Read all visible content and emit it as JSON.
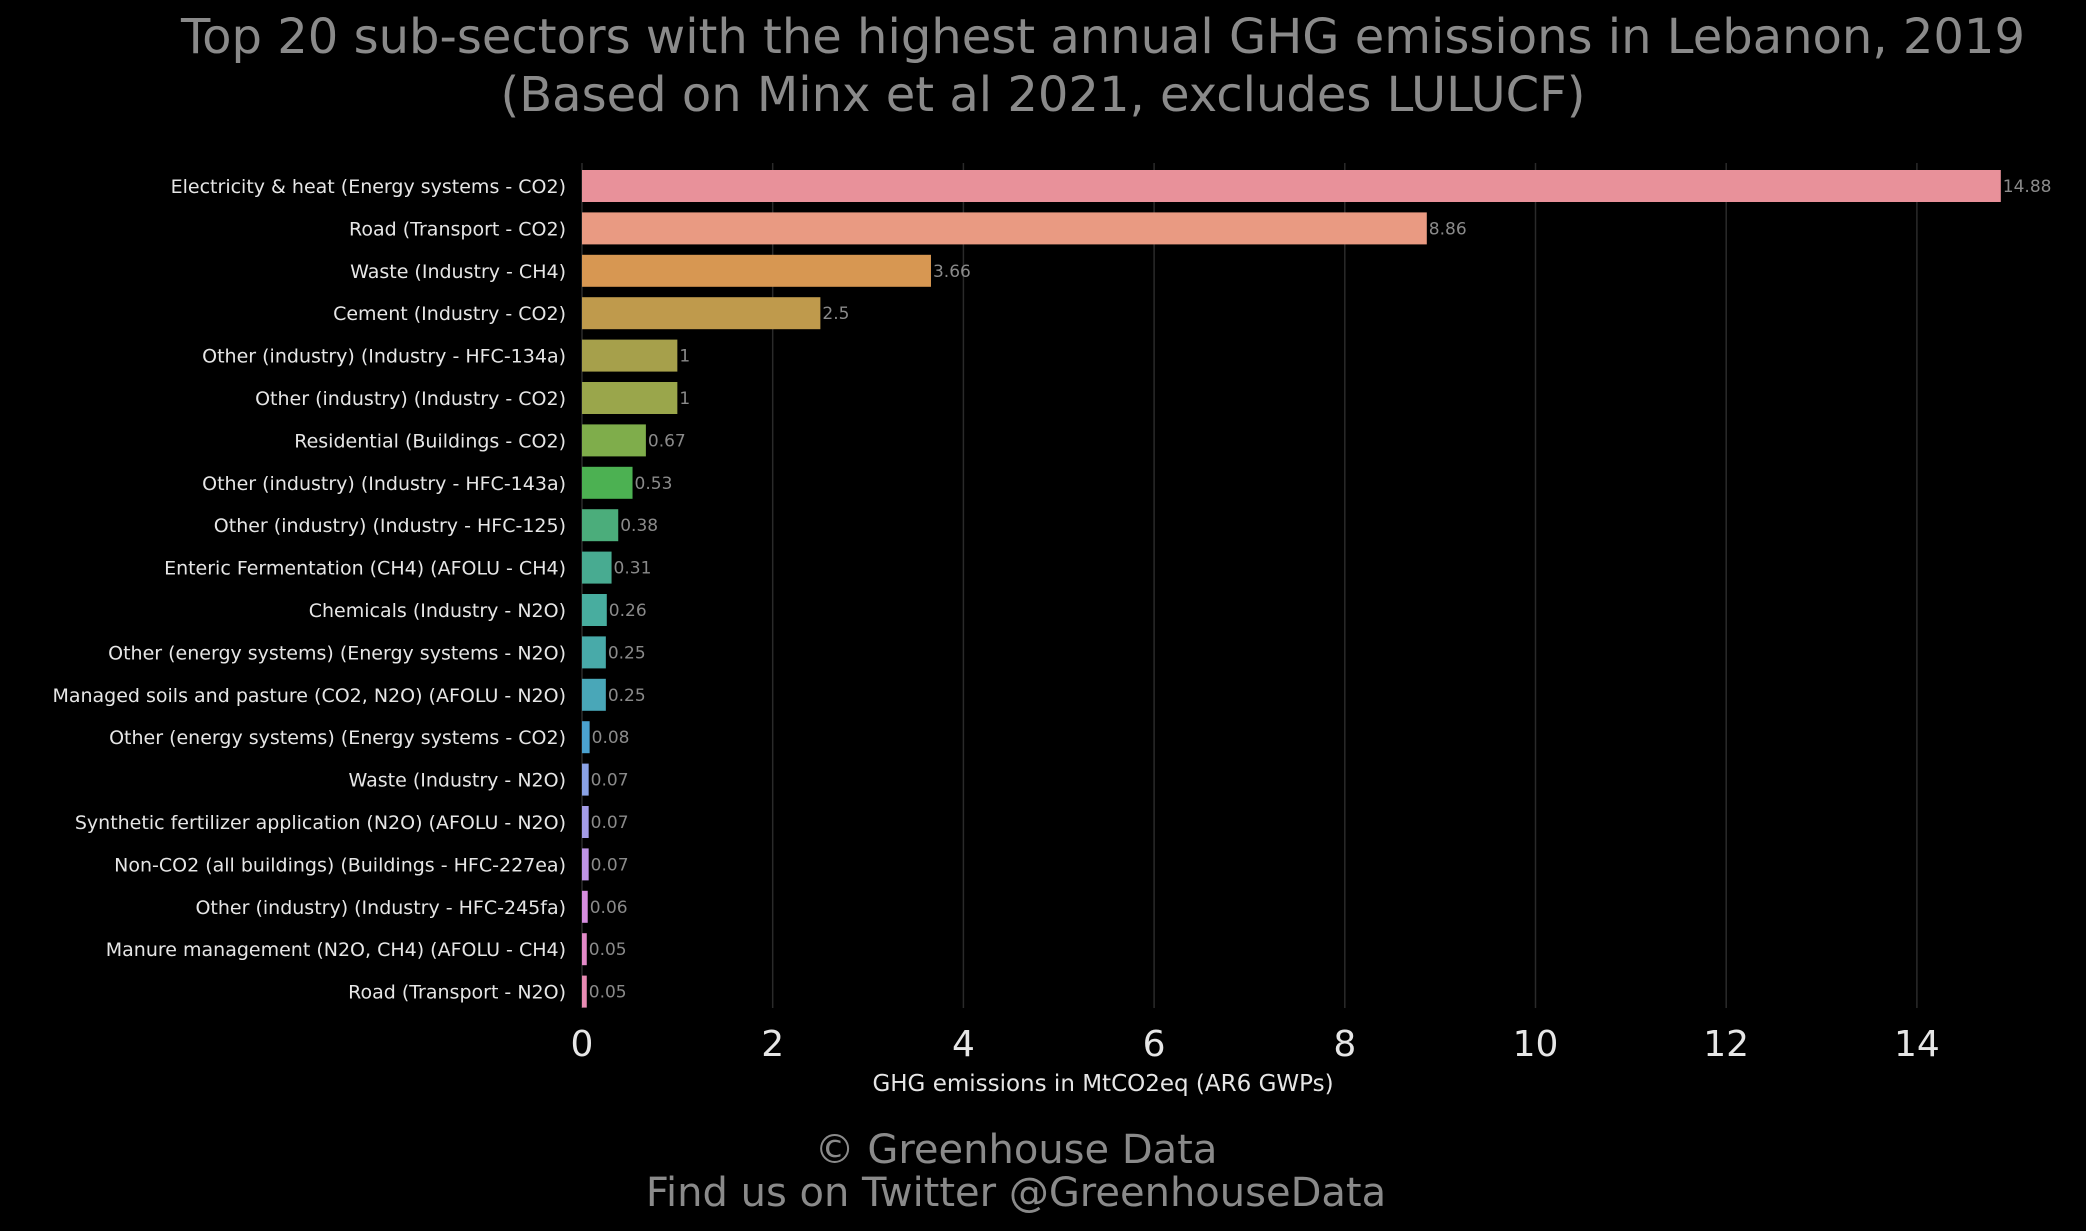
{
  "chart_data": {
    "type": "bar",
    "orientation": "horizontal",
    "title": "Top 20 sub-sectors with the highest annual GHG emissions in Lebanon, 2019",
    "subtitle": "(Based on Minx et al 2021, excludes LULUCF)",
    "xlabel": "GHG emissions in MtCO2eq (AR6 GWPs)",
    "ylabel": "",
    "xlim": [
      0,
      15.4
    ],
    "xticks": [
      0,
      2,
      4,
      6,
      8,
      10,
      12,
      14
    ],
    "grid": "vertical",
    "legend": "none",
    "categories": [
      "Electricity & heat (Energy systems - CO2)",
      "Road (Transport - CO2)",
      "Waste (Industry - CH4)",
      "Cement (Industry - CO2)",
      "Other (industry) (Industry - HFC-134a)",
      "Other (industry) (Industry - CO2)",
      "Residential (Buildings - CO2)",
      "Other (industry) (Industry - HFC-143a)",
      "Other (industry) (Industry - HFC-125)",
      "Enteric Fermentation (CH4) (AFOLU - CH4)",
      "Chemicals (Industry - N2O)",
      "Other (energy systems) (Energy systems - N2O)",
      "Managed soils and pasture (CO2, N2O) (AFOLU - N2O)",
      "Other (energy systems) (Energy systems - CO2)",
      "Waste (Industry - N2O)",
      "Synthetic fertilizer application (N2O) (AFOLU - N2O)",
      "Non-CO2 (all buildings) (Buildings - HFC-227ea)",
      "Other (industry) (Industry - HFC-245fa)",
      "Manure management (N2O, CH4) (AFOLU - CH4)",
      "Road (Transport - N2O)"
    ],
    "values": [
      14.88,
      8.86,
      3.66,
      2.5,
      1,
      1,
      0.67,
      0.53,
      0.38,
      0.31,
      0.26,
      0.25,
      0.25,
      0.08,
      0.07,
      0.07,
      0.07,
      0.06,
      0.05,
      0.05
    ],
    "value_labels": [
      "14.88",
      "8.86",
      "3.66",
      "2.5",
      "1",
      "1",
      "0.67",
      "0.53",
      "0.38",
      "0.31",
      "0.26",
      "0.25",
      "0.25",
      "0.08",
      "0.07",
      "0.07",
      "0.07",
      "0.06",
      "0.05",
      "0.05"
    ],
    "colors": [
      "#e8919a",
      "#e99a82",
      "#d79752",
      "#bf9a4c",
      "#a6a04b",
      "#9aa64b",
      "#7fad4b",
      "#4cb152",
      "#4bad7b",
      "#48ab91",
      "#48ad9f",
      "#48aaa9",
      "#49a7b8",
      "#4ba2d0",
      "#8aa2e6",
      "#a49de8",
      "#be94e6",
      "#d78ee0",
      "#e38ac8",
      "#e88bb3"
    ]
  },
  "footer": {
    "credit_line1": "© Greenhouse Data",
    "credit_line2": "Find us on Twitter @GreenhouseData"
  }
}
